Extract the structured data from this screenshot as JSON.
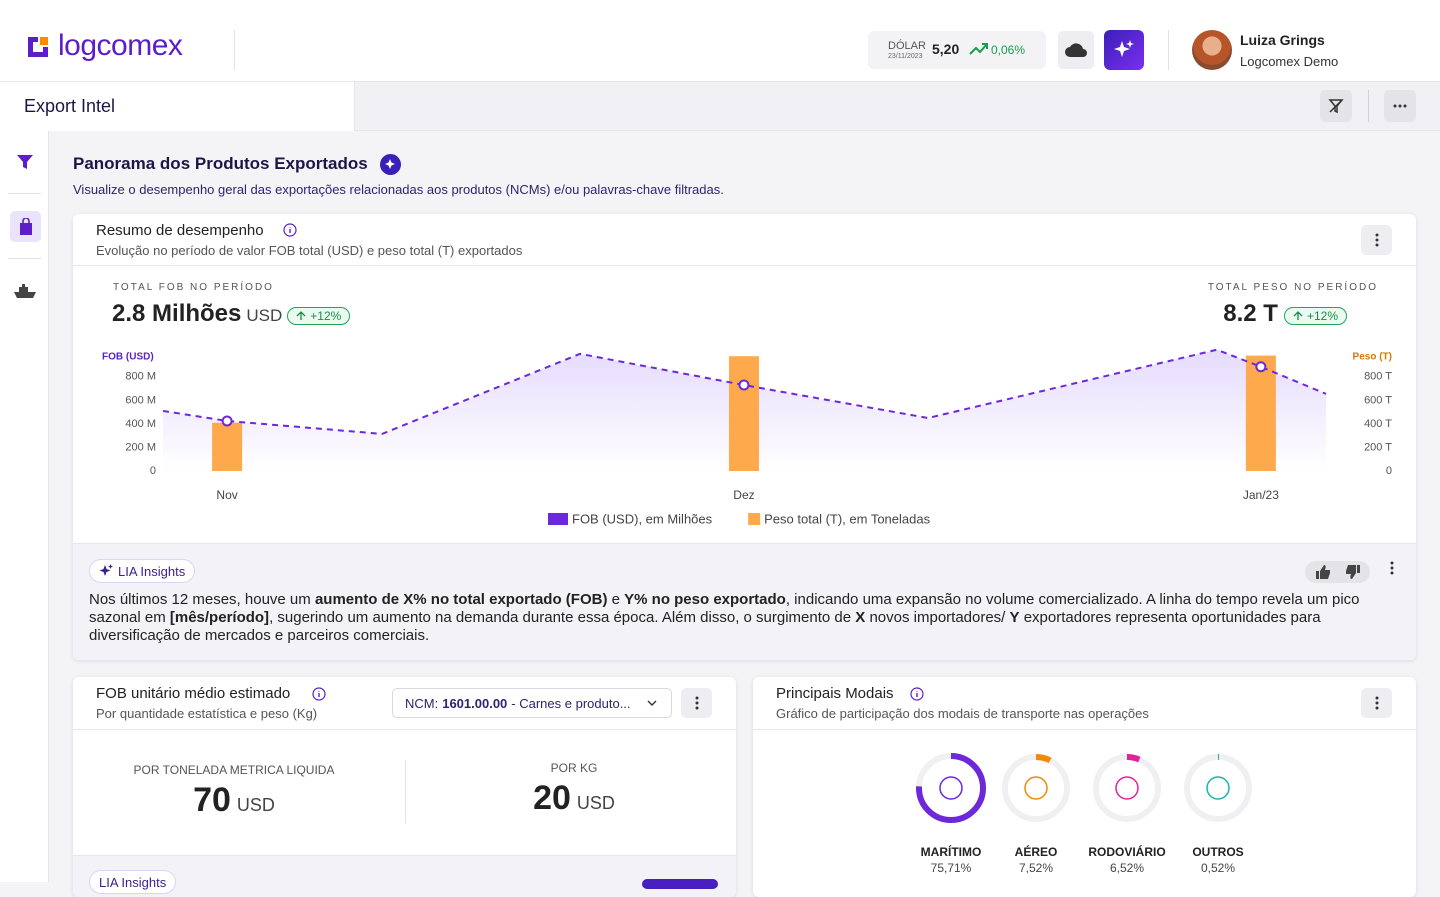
{
  "header": {
    "logo": "logcomex",
    "dollar_label": "DÓLAR",
    "dollar_date": "23/11/2023",
    "dollar_rate": "5,20",
    "dollar_change": "0,06%",
    "user_name": "Luiza Grings",
    "user_org": "Logcomex Demo"
  },
  "toolbar": {
    "title": "Export Intel"
  },
  "section": {
    "title": "Panorama dos Produtos Exportados",
    "subtitle": "Visualize o desempenho geral das exportações relacionadas aos produtos (NCMs) e/ou palavras-chave filtradas."
  },
  "performance": {
    "title": "Resumo de desempenho",
    "subtitle": "Evolução no período de valor FOB total (USD) e peso total (T) exportados",
    "fob_label": "TOTAL FOB NO PERÍODO",
    "fob_value": "2.8 Milhões",
    "fob_unit": "USD",
    "fob_change": "+12%",
    "weight_label": "TOTAL PESO NO PERÍODO",
    "weight_value": "8.2 T",
    "weight_change": "+12%"
  },
  "chart_data": {
    "type": "combo",
    "y_axis_title": "FOB (USD)",
    "y2_axis_title": "Peso (T)",
    "xlim": [
      -0.124,
      2.126
    ],
    "xticks": [
      {
        "value": 0,
        "label": "Nov"
      },
      {
        "value": 1,
        "label": "Dez"
      },
      {
        "value": 2,
        "label": "Jan/23"
      }
    ],
    "ylim": [
      0,
      1070
    ],
    "yticks": [
      0,
      {
        "value": 200,
        "label": "200 M"
      },
      {
        "value": 400,
        "label": "400 M"
      },
      {
        "value": 600,
        "label": "600 M"
      },
      {
        "value": 800,
        "label": "800 M"
      }
    ],
    "y2lim": [
      0,
      1070
    ],
    "y2ticks": [
      0,
      {
        "value": 200,
        "label": "200 T"
      },
      {
        "value": 400,
        "label": "400 T"
      },
      {
        "value": 600,
        "label": "600 T"
      },
      {
        "value": 800,
        "label": "800 T"
      }
    ],
    "grid": false,
    "series": [
      {
        "name": "FOB (USD), em Milhões",
        "color": "#6d28d9",
        "kind": "line",
        "x": [
          -0.124,
          0,
          0.3,
          0.683,
          1,
          1.356,
          1.915,
          2,
          2.126
        ],
        "values": [
          510,
          425,
          315,
          995,
          730,
          450,
          1030,
          885,
          655
        ]
      },
      {
        "name": "Peso total (T), em Toneladas",
        "color": "#ffa94d",
        "kind": "bar",
        "axis": "y2",
        "x": [
          0,
          1,
          2
        ],
        "values": [
          410,
          975,
          980
        ]
      }
    ]
  },
  "insights": {
    "badge": "LIA Insights",
    "segments": [
      {
        "text": "Nos últimos 12 meses, houve um ",
        "bold": false
      },
      {
        "text": "aumento de X% no total exportado (FOB)",
        "bold": true
      },
      {
        "text": " e ",
        "bold": false
      },
      {
        "text": "Y% no peso exportado",
        "bold": true
      },
      {
        "text": ", indicando uma expansão no volume comercializado. A linha do tempo revela um pico sazonal em ",
        "bold": false
      },
      {
        "text": "[mês/período]",
        "bold": true
      },
      {
        "text": ", sugerindo um aumento na demanda durante essa época. Além disso, o surgimento de ",
        "bold": false
      },
      {
        "text": "X",
        "bold": true
      },
      {
        "text": " novos importadores/ ",
        "bold": false
      },
      {
        "text": "Y",
        "bold": true
      },
      {
        "text": " exportadores representa oportunidades para diversificação de mercados e parceiros comerciais.",
        "bold": false
      }
    ]
  },
  "unit_fob": {
    "title": "FOB unitário médio estimado",
    "subtitle": "Por quantidade estatística e peso (Kg)",
    "ncm_prefix": "NCM:",
    "ncm_code": "1601.00.00",
    "ncm_desc": "- Carnes e produto...",
    "per_tonne_label": "POR TONELADA METRICA LIQUIDA",
    "per_tonne_value": 70,
    "per_tonne_unit": "USD",
    "per_kg_label": "POR KG",
    "per_kg_value": 20,
    "per_kg_unit": "USD",
    "insights_badge": "LIA Insights"
  },
  "modals": {
    "title": "Principais Modais",
    "subtitle": "Gráfico de participação dos modais de transporte nas operações",
    "items": [
      {
        "name": "MARÍTIMO",
        "value": 75.71,
        "value_label": "75,71%",
        "color": "#6d28d9"
      },
      {
        "name": "AÉREO",
        "value": 7.52,
        "value_label": "7,52%",
        "color": "#f08a00"
      },
      {
        "name": "RODOVIÁRIO",
        "value": 6.52,
        "value_label": "6,52%",
        "color": "#e0239b"
      },
      {
        "name": "OUTROS",
        "value": 0.52,
        "value_label": "0,52%",
        "color": "#19b5a5"
      }
    ]
  }
}
